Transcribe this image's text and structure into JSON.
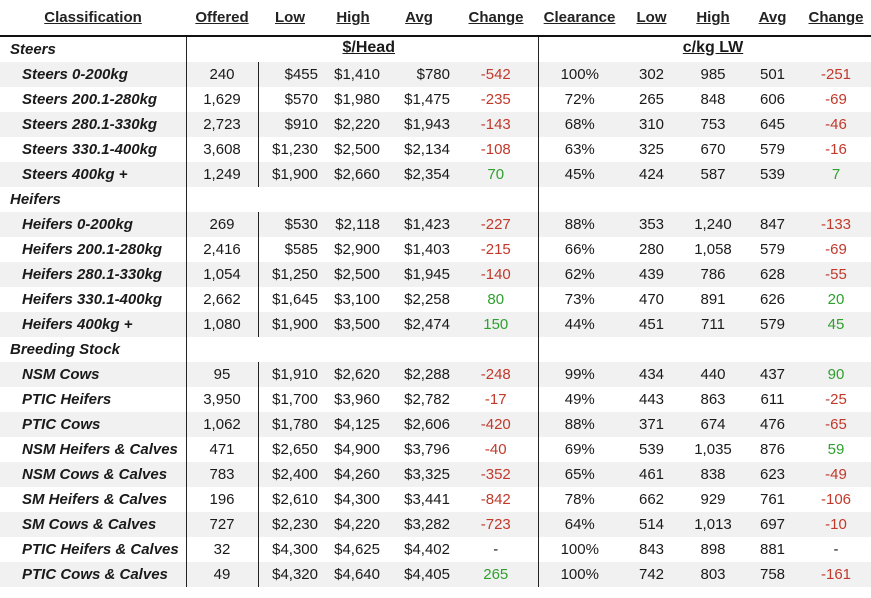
{
  "headers": [
    "Classification",
    "Offered",
    "Low",
    "High",
    "Avg",
    "Change",
    "Clearance",
    "Low",
    "High",
    "Avg",
    "Change"
  ],
  "unit_head": "$/Head",
  "unit_kg": "c/kg LW",
  "sections": [
    {
      "title": "Steers",
      "rows": [
        {
          "label": "Steers 0-200kg",
          "offered": "240",
          "low": "$455",
          "high": "$1,410",
          "avg": "$780",
          "change": "-542",
          "clearance": "100%",
          "kg_low": "302",
          "kg_high": "985",
          "kg_avg": "501",
          "kg_change": "-251"
        },
        {
          "label": "Steers 200.1-280kg",
          "offered": "1,629",
          "low": "$570",
          "high": "$1,980",
          "avg": "$1,475",
          "change": "-235",
          "clearance": "72%",
          "kg_low": "265",
          "kg_high": "848",
          "kg_avg": "606",
          "kg_change": "-69"
        },
        {
          "label": "Steers 280.1-330kg",
          "offered": "2,723",
          "low": "$910",
          "high": "$2,220",
          "avg": "$1,943",
          "change": "-143",
          "clearance": "68%",
          "kg_low": "310",
          "kg_high": "753",
          "kg_avg": "645",
          "kg_change": "-46"
        },
        {
          "label": "Steers 330.1-400kg",
          "offered": "3,608",
          "low": "$1,230",
          "high": "$2,500",
          "avg": "$2,134",
          "change": "-108",
          "clearance": "63%",
          "kg_low": "325",
          "kg_high": "670",
          "kg_avg": "579",
          "kg_change": "-16"
        },
        {
          "label": "Steers 400kg +",
          "offered": "1,249",
          "low": "$1,900",
          "high": "$2,660",
          "avg": "$2,354",
          "change": "70",
          "clearance": "45%",
          "kg_low": "424",
          "kg_high": "587",
          "kg_avg": "539",
          "kg_change": "7"
        }
      ]
    },
    {
      "title": "Heifers",
      "rows": [
        {
          "label": "Heifers 0-200kg",
          "offered": "269",
          "low": "$530",
          "high": "$2,118",
          "avg": "$1,423",
          "change": "-227",
          "clearance": "88%",
          "kg_low": "353",
          "kg_high": "1,240",
          "kg_avg": "847",
          "kg_change": "-133"
        },
        {
          "label": "Heifers 200.1-280kg",
          "offered": "2,416",
          "low": "$585",
          "high": "$2,900",
          "avg": "$1,403",
          "change": "-215",
          "clearance": "66%",
          "kg_low": "280",
          "kg_high": "1,058",
          "kg_avg": "579",
          "kg_change": "-69"
        },
        {
          "label": "Heifers 280.1-330kg",
          "offered": "1,054",
          "low": "$1,250",
          "high": "$2,500",
          "avg": "$1,945",
          "change": "-140",
          "clearance": "62%",
          "kg_low": "439",
          "kg_high": "786",
          "kg_avg": "628",
          "kg_change": "-55"
        },
        {
          "label": "Heifers 330.1-400kg",
          "offered": "2,662",
          "low": "$1,645",
          "high": "$3,100",
          "avg": "$2,258",
          "change": "80",
          "clearance": "73%",
          "kg_low": "470",
          "kg_high": "891",
          "kg_avg": "626",
          "kg_change": "20"
        },
        {
          "label": "Heifers 400kg +",
          "offered": "1,080",
          "low": "$1,900",
          "high": "$3,500",
          "avg": "$2,474",
          "change": "150",
          "clearance": "44%",
          "kg_low": "451",
          "kg_high": "711",
          "kg_avg": "579",
          "kg_change": "45"
        }
      ]
    },
    {
      "title": "Breeding Stock",
      "rows": [
        {
          "label": "NSM Cows",
          "offered": "95",
          "low": "$1,910",
          "high": "$2,620",
          "avg": "$2,288",
          "change": "-248",
          "clearance": "99%",
          "kg_low": "434",
          "kg_high": "440",
          "kg_avg": "437",
          "kg_change": "90"
        },
        {
          "label": "PTIC Heifers",
          "offered": "3,950",
          "low": "$1,700",
          "high": "$3,960",
          "avg": "$2,782",
          "change": "-17",
          "clearance": "49%",
          "kg_low": "443",
          "kg_high": "863",
          "kg_avg": "611",
          "kg_change": "-25"
        },
        {
          "label": "PTIC Cows",
          "offered": "1,062",
          "low": "$1,780",
          "high": "$4,125",
          "avg": "$2,606",
          "change": "-420",
          "clearance": "88%",
          "kg_low": "371",
          "kg_high": "674",
          "kg_avg": "476",
          "kg_change": "-65"
        },
        {
          "label": "NSM Heifers & Calves",
          "offered": "471",
          "low": "$2,650",
          "high": "$4,900",
          "avg": "$3,796",
          "change": "-40",
          "clearance": "69%",
          "kg_low": "539",
          "kg_high": "1,035",
          "kg_avg": "876",
          "kg_change": "59"
        },
        {
          "label": "NSM Cows & Calves",
          "offered": "783",
          "low": "$2,400",
          "high": "$4,260",
          "avg": "$3,325",
          "change": "-352",
          "clearance": "65%",
          "kg_low": "461",
          "kg_high": "838",
          "kg_avg": "623",
          "kg_change": "-49"
        },
        {
          "label": "SM Heifers & Calves",
          "offered": "196",
          "low": "$2,610",
          "high": "$4,300",
          "avg": "$3,441",
          "change": "-842",
          "clearance": "78%",
          "kg_low": "662",
          "kg_high": "929",
          "kg_avg": "761",
          "kg_change": "-106"
        },
        {
          "label": "SM Cows & Calves",
          "offered": "727",
          "low": "$2,230",
          "high": "$4,220",
          "avg": "$3,282",
          "change": "-723",
          "clearance": "64%",
          "kg_low": "514",
          "kg_high": "1,013",
          "kg_avg": "697",
          "kg_change": "-10"
        },
        {
          "label": "PTIC Heifers & Calves",
          "offered": "32",
          "low": "$4,300",
          "high": "$4,625",
          "avg": "$4,402",
          "change": "-",
          "clearance": "100%",
          "kg_low": "843",
          "kg_high": "898",
          "kg_avg": "881",
          "kg_change": "-"
        },
        {
          "label": "PTIC Cows & Calves",
          "offered": "49",
          "low": "$4,320",
          "high": "$4,640",
          "avg": "$4,405",
          "change": "265",
          "clearance": "100%",
          "kg_low": "742",
          "kg_high": "803",
          "kg_avg": "758",
          "kg_change": "-161"
        }
      ]
    }
  ],
  "colors": {
    "negative": "#c0392b",
    "positive": "#2ea02e",
    "shade": "#f1f1f1"
  }
}
